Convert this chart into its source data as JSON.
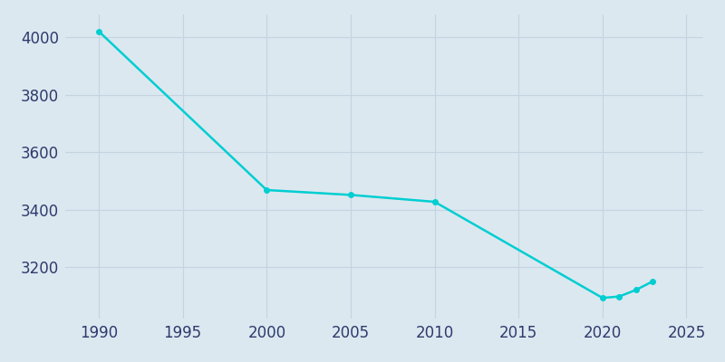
{
  "years": [
    1990,
    2000,
    2005,
    2010,
    2020,
    2021,
    2022,
    2023
  ],
  "population": [
    4021,
    3468,
    3451,
    3427,
    3092,
    3097,
    3120,
    3150
  ],
  "line_color": "#00CED1",
  "marker_color": "#00CED1",
  "bg_color": "#dce8f0",
  "plot_bg_color": "#dce8f0",
  "grid_color": "#c4d4e0",
  "tick_color": "#2d3a6b",
  "xlim": [
    1988,
    2026
  ],
  "ylim": [
    3020,
    4080
  ],
  "xticks": [
    1990,
    1995,
    2000,
    2005,
    2010,
    2015,
    2020,
    2025
  ],
  "yticks": [
    3200,
    3400,
    3600,
    3800,
    4000
  ],
  "line_width": 1.8,
  "marker_size": 4,
  "tick_fontsize": 12
}
